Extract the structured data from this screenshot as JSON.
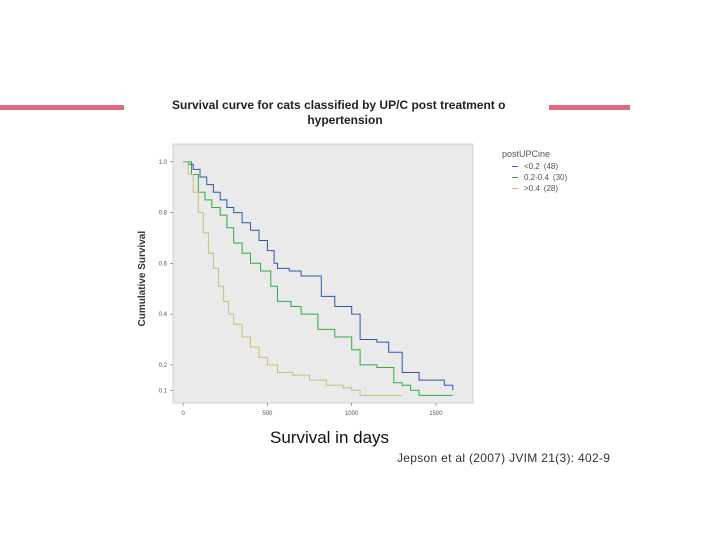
{
  "colors": {
    "accent_bar": "#e06b7f",
    "plot_bg": "#eaeaea",
    "series_low": "#3355aa",
    "series_mid": "#33aa44",
    "series_high": "#c9be7a"
  },
  "slide": {
    "x_caption": "Survival in days",
    "citation": "Jepson et al (2007) JVIM 21(3): 402-9"
  },
  "chart_data": {
    "type": "line",
    "title_line1": "Survival curve for cats classified by UP/C post treatment o",
    "title_line2": "hypertension",
    "xlabel": "",
    "ylabel": "Cumulative Survival",
    "xlim": [
      -60,
      1720
    ],
    "ylim": [
      0.05,
      1.07
    ],
    "x_ticks": [
      0,
      500,
      1000,
      1500
    ],
    "x_tick_labels": [
      "0",
      "500",
      "1000",
      "1500"
    ],
    "y_ticks": [
      0.1,
      0.2,
      0.4,
      0.6,
      0.8,
      1.0
    ],
    "y_tick_labels": [
      "0.1",
      "0.2",
      "0.4",
      "0.6",
      "0.8",
      "1.0"
    ],
    "legend": {
      "title": "postUPCine",
      "items": [
        {
          "label": "<0.2",
          "count": "(48)"
        },
        {
          "label": "0.2-0.4",
          "count": "(30)"
        },
        {
          "label": ">0.4",
          "count": "(28)"
        }
      ]
    },
    "series": [
      {
        "name": "<0.2 (48)",
        "points": [
          [
            0,
            1.0
          ],
          [
            30,
            0.99
          ],
          [
            60,
            0.97
          ],
          [
            100,
            0.94
          ],
          [
            140,
            0.91
          ],
          [
            180,
            0.88
          ],
          [
            220,
            0.85
          ],
          [
            260,
            0.82
          ],
          [
            300,
            0.8
          ],
          [
            350,
            0.76
          ],
          [
            400,
            0.73
          ],
          [
            450,
            0.69
          ],
          [
            500,
            0.65
          ],
          [
            540,
            0.6
          ],
          [
            560,
            0.58
          ],
          [
            630,
            0.57
          ],
          [
            700,
            0.55
          ],
          [
            820,
            0.47
          ],
          [
            900,
            0.43
          ],
          [
            1000,
            0.4
          ],
          [
            1050,
            0.3
          ],
          [
            1150,
            0.29
          ],
          [
            1220,
            0.25
          ],
          [
            1300,
            0.17
          ],
          [
            1400,
            0.14
          ],
          [
            1550,
            0.12
          ],
          [
            1600,
            0.1
          ]
        ]
      },
      {
        "name": "0.2-0.4 (30)",
        "points": [
          [
            0,
            1.0
          ],
          [
            50,
            0.95
          ],
          [
            90,
            0.88
          ],
          [
            130,
            0.85
          ],
          [
            170,
            0.82
          ],
          [
            220,
            0.79
          ],
          [
            260,
            0.74
          ],
          [
            300,
            0.68
          ],
          [
            350,
            0.64
          ],
          [
            400,
            0.6
          ],
          [
            460,
            0.57
          ],
          [
            520,
            0.51
          ],
          [
            560,
            0.45
          ],
          [
            640,
            0.43
          ],
          [
            700,
            0.4
          ],
          [
            800,
            0.34
          ],
          [
            900,
            0.31
          ],
          [
            1000,
            0.26
          ],
          [
            1050,
            0.2
          ],
          [
            1150,
            0.19
          ],
          [
            1250,
            0.13
          ],
          [
            1300,
            0.12
          ],
          [
            1350,
            0.1
          ],
          [
            1400,
            0.08
          ],
          [
            1600,
            0.08
          ]
        ]
      },
      {
        "name": ">0.4 (28)",
        "points": [
          [
            0,
            1.0
          ],
          [
            30,
            0.95
          ],
          [
            60,
            0.88
          ],
          [
            90,
            0.8
          ],
          [
            120,
            0.72
          ],
          [
            150,
            0.64
          ],
          [
            180,
            0.58
          ],
          [
            210,
            0.51
          ],
          [
            240,
            0.45
          ],
          [
            270,
            0.4
          ],
          [
            300,
            0.36
          ],
          [
            350,
            0.31
          ],
          [
            400,
            0.27
          ],
          [
            450,
            0.23
          ],
          [
            500,
            0.2
          ],
          [
            560,
            0.17
          ],
          [
            650,
            0.16
          ],
          [
            750,
            0.14
          ],
          [
            850,
            0.12
          ],
          [
            950,
            0.11
          ],
          [
            1000,
            0.1
          ],
          [
            1050,
            0.08
          ],
          [
            1300,
            0.08
          ]
        ]
      }
    ]
  }
}
